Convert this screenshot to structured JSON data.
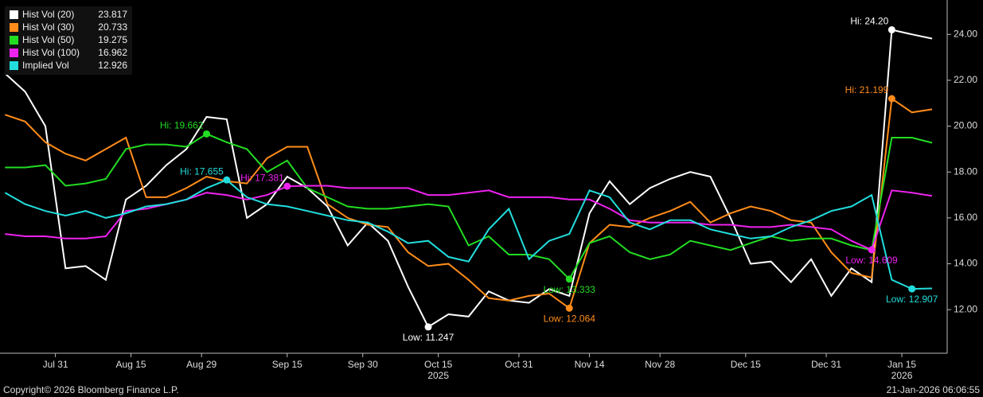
{
  "chart_data": {
    "type": "line",
    "x": [
      "2025-07-21",
      "2025-07-25",
      "2025-07-29",
      "2025-08-02",
      "2025-08-06",
      "2025-08-10",
      "2025-08-14",
      "2025-08-18",
      "2025-08-22",
      "2025-08-26",
      "2025-08-30",
      "2025-09-03",
      "2025-09-07",
      "2025-09-11",
      "2025-09-15",
      "2025-09-19",
      "2025-09-23",
      "2025-09-27",
      "2025-10-01",
      "2025-10-05",
      "2025-10-09",
      "2025-10-13",
      "2025-10-17",
      "2025-10-21",
      "2025-10-25",
      "2025-10-29",
      "2025-11-02",
      "2025-11-06",
      "2025-11-10",
      "2025-11-14",
      "2025-11-18",
      "2025-11-22",
      "2025-11-26",
      "2025-11-30",
      "2025-12-04",
      "2025-12-08",
      "2025-12-12",
      "2025-12-16",
      "2025-12-20",
      "2025-12-24",
      "2025-12-28",
      "2026-01-01",
      "2026-01-05",
      "2026-01-09",
      "2026-01-13",
      "2026-01-17",
      "2026-01-21"
    ],
    "series": [
      {
        "name": "Hist Vol (20)",
        "last": 23.817,
        "color": "#ffffff",
        "values": [
          22.3,
          21.5,
          20.0,
          13.8,
          13.9,
          13.3,
          16.8,
          17.4,
          18.3,
          19.0,
          20.4,
          20.3,
          16.0,
          16.6,
          17.8,
          17.3,
          16.5,
          14.8,
          15.8,
          15.0,
          13.0,
          11.247,
          11.8,
          11.7,
          12.8,
          12.4,
          12.3,
          12.9,
          12.6,
          16.2,
          17.6,
          16.6,
          17.3,
          17.7,
          18.0,
          17.8,
          16.0,
          14.0,
          14.1,
          13.2,
          14.2,
          12.6,
          13.8,
          13.2,
          24.2,
          24.0,
          23.817
        ]
      },
      {
        "name": "Hist Vol (30)",
        "last": 20.733,
        "color": "#ff8c1a",
        "values": [
          20.5,
          20.2,
          19.3,
          18.8,
          18.5,
          19.0,
          19.5,
          16.9,
          16.9,
          17.3,
          17.8,
          17.6,
          17.5,
          18.6,
          19.1,
          19.1,
          16.6,
          16.0,
          15.7,
          15.6,
          14.5,
          13.9,
          14.0,
          13.3,
          12.5,
          12.4,
          12.6,
          12.7,
          12.064,
          14.9,
          15.7,
          15.6,
          16.0,
          16.3,
          16.7,
          15.8,
          16.2,
          16.5,
          16.3,
          15.9,
          15.8,
          14.5,
          13.6,
          13.4,
          21.199,
          20.6,
          20.733
        ]
      },
      {
        "name": "Hist Vol (50)",
        "last": 19.275,
        "color": "#22dd22",
        "values": [
          18.2,
          18.2,
          18.3,
          17.4,
          17.5,
          17.7,
          19.0,
          19.2,
          19.2,
          19.1,
          19.662,
          19.3,
          19.0,
          18.0,
          18.5,
          17.3,
          16.9,
          16.5,
          16.4,
          16.4,
          16.5,
          16.6,
          16.5,
          14.8,
          15.2,
          14.4,
          14.4,
          14.2,
          13.333,
          14.9,
          15.2,
          14.5,
          14.2,
          14.4,
          15.0,
          14.8,
          14.6,
          14.9,
          15.2,
          15.0,
          15.1,
          15.1,
          14.8,
          14.6,
          19.5,
          19.5,
          19.275
        ]
      },
      {
        "name": "Hist Vol (100)",
        "last": 16.962,
        "color": "#ee22ee",
        "values": [
          15.3,
          15.2,
          15.2,
          15.1,
          15.1,
          15.2,
          16.3,
          16.4,
          16.6,
          16.8,
          17.1,
          17.0,
          16.8,
          17.0,
          17.381,
          17.4,
          17.4,
          17.3,
          17.3,
          17.3,
          17.3,
          17.0,
          17.0,
          17.1,
          17.2,
          16.9,
          16.9,
          16.9,
          16.8,
          16.8,
          16.4,
          15.9,
          15.8,
          15.8,
          15.8,
          15.7,
          15.7,
          15.6,
          15.6,
          15.7,
          15.6,
          15.5,
          15.0,
          14.609,
          17.2,
          17.1,
          16.962
        ]
      },
      {
        "name": "Implied Vol",
        "last": 12.926,
        "color": "#22dddd",
        "values": [
          17.1,
          16.6,
          16.3,
          16.1,
          16.3,
          16.0,
          16.2,
          16.5,
          16.6,
          16.8,
          17.3,
          17.655,
          16.9,
          16.6,
          16.5,
          16.3,
          16.1,
          15.9,
          15.8,
          15.4,
          14.9,
          15.0,
          14.3,
          14.1,
          15.5,
          16.4,
          14.2,
          15.0,
          15.3,
          17.2,
          16.9,
          15.8,
          15.5,
          15.9,
          15.9,
          15.5,
          15.3,
          15.1,
          15.2,
          15.6,
          15.9,
          16.3,
          16.5,
          17.0,
          13.3,
          12.907,
          12.926
        ]
      }
    ],
    "annotations": [
      {
        "series": 0,
        "x": "2026-01-13",
        "value": 24.2,
        "label": "Hi: 24.20"
      },
      {
        "series": 0,
        "x": "2025-10-13",
        "value": 11.247,
        "label": "Low: 11.247"
      },
      {
        "series": 1,
        "x": "2026-01-13",
        "value": 21.199,
        "label": "Hi: 21.199"
      },
      {
        "series": 1,
        "x": "2025-11-10",
        "value": 12.064,
        "label": "Low: 12.064"
      },
      {
        "series": 2,
        "x": "2025-08-30",
        "value": 19.662,
        "label": "Hi: 19.662"
      },
      {
        "series": 2,
        "x": "2025-11-10",
        "value": 13.333,
        "label": "Low: 13.333"
      },
      {
        "series": 3,
        "x": "2025-09-15",
        "value": 17.381,
        "label": "Hi: 17.381"
      },
      {
        "series": 3,
        "x": "2026-01-09",
        "value": 14.609,
        "label": "Low: 14.609"
      },
      {
        "series": 4,
        "x": "2025-09-03",
        "value": 17.655,
        "label": "Hi: 17.655"
      },
      {
        "series": 4,
        "x": "2026-01-17",
        "value": 12.907,
        "label": "Low: 12.907"
      }
    ],
    "xlim": [
      "2025-07-20",
      "2026-01-24"
    ],
    "xticks": [
      {
        "value": "2025-07-31",
        "label": "Jul 31"
      },
      {
        "value": "2025-08-15",
        "label": "Aug 15"
      },
      {
        "value": "2025-08-29",
        "label": "Aug 29"
      },
      {
        "value": "2025-09-15",
        "label": "Sep 15"
      },
      {
        "value": "2025-09-30",
        "label": "Sep 30"
      },
      {
        "value": "2025-10-15",
        "label": "Oct 15"
      },
      {
        "value": "2025-10-31",
        "label": "Oct 31"
      },
      {
        "value": "2025-11-14",
        "label": "Nov 14"
      },
      {
        "value": "2025-11-28",
        "label": "Nov 28"
      },
      {
        "value": "2025-12-15",
        "label": "Dec 15"
      },
      {
        "value": "2025-12-31",
        "label": "Dec 31"
      },
      {
        "value": "2026-01-15",
        "label": "Jan 15"
      }
    ],
    "year_labels": [
      {
        "value": "2025-10-15",
        "label": "2025"
      },
      {
        "value": "2026-01-15",
        "label": "2026"
      }
    ],
    "ylim": [
      10.1,
      25.5
    ],
    "yticks": [
      {
        "value": 12,
        "label": "12.00"
      },
      {
        "value": 14,
        "label": "14.00"
      },
      {
        "value": 16,
        "label": "16.00"
      },
      {
        "value": 18,
        "label": "18.00"
      },
      {
        "value": 20,
        "label": "20.00"
      },
      {
        "value": 22,
        "label": "22.00"
      },
      {
        "value": 24,
        "label": "24.00"
      }
    ],
    "footer_left": "Copyright© 2026 Bloomberg Finance L.P.",
    "footer_right": "21-Jan-2026 06:06:55"
  }
}
